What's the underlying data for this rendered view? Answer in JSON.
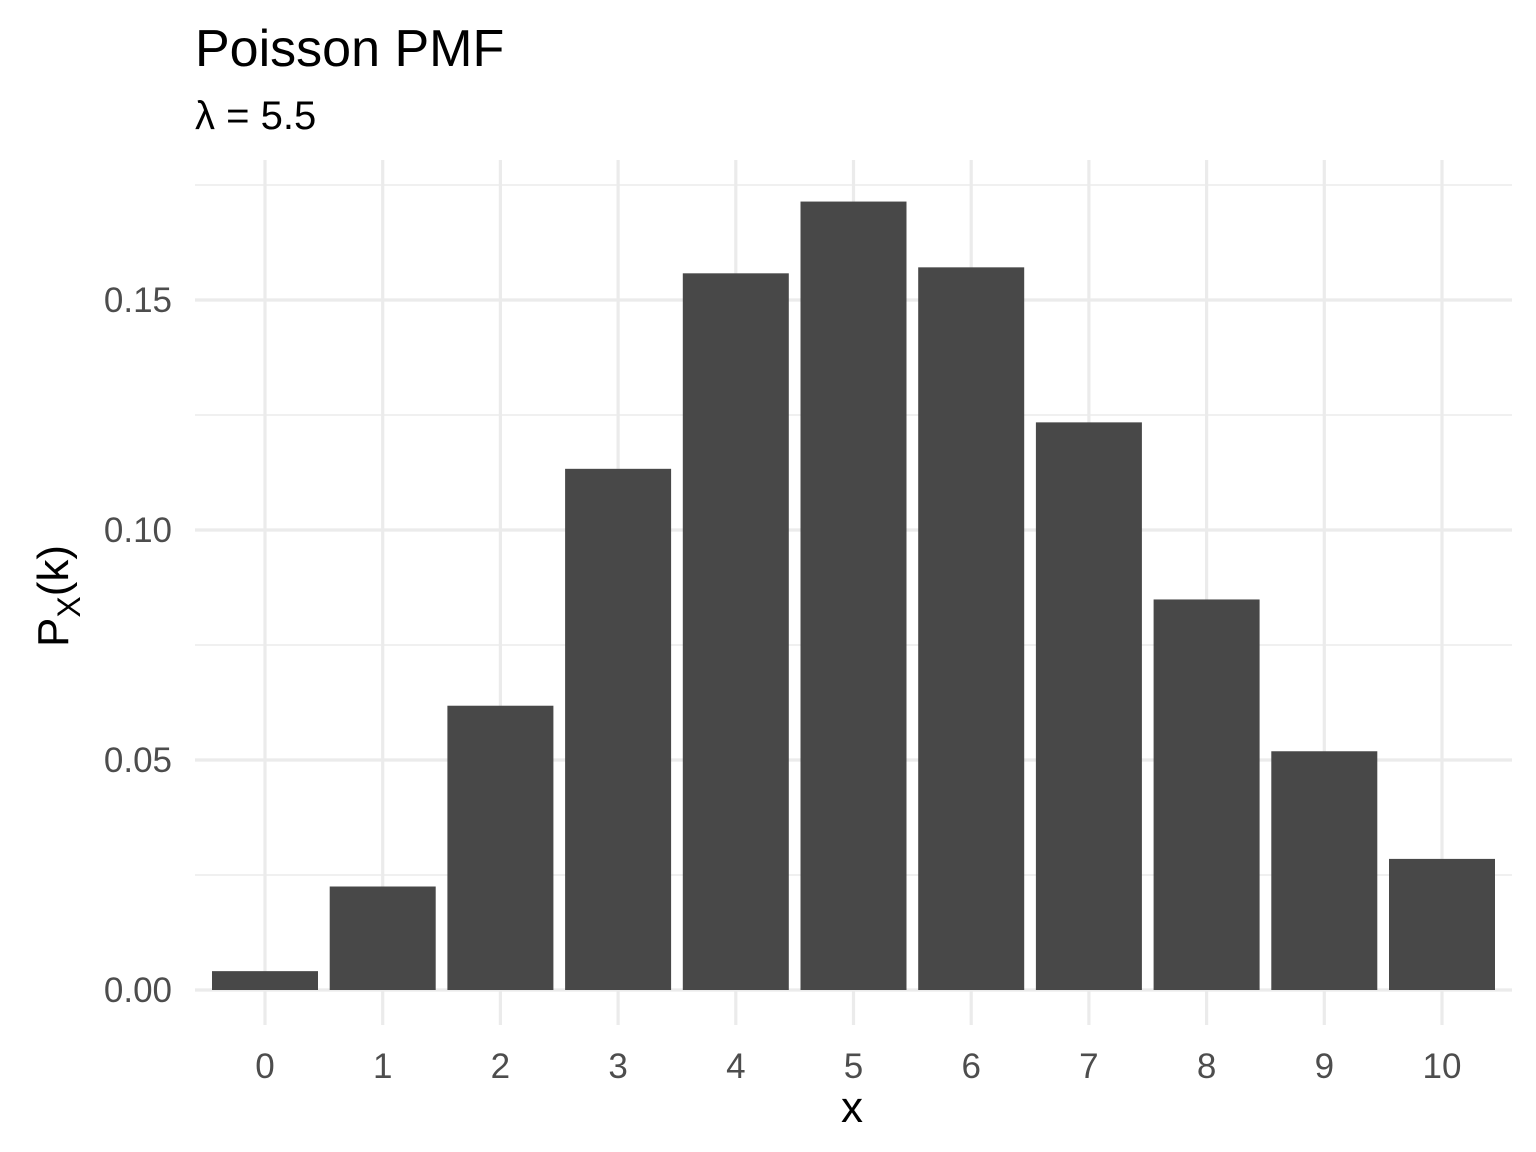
{
  "chart_data": {
    "type": "bar",
    "title": "Poisson PMF",
    "subtitle": "λ = 5.5",
    "xlabel": "x",
    "ylabel": "P_X(k)",
    "ylabel_main": "P",
    "ylabel_sub": "X",
    "ylabel_tail": "(k)",
    "categories": [
      "0",
      "1",
      "2",
      "3",
      "4",
      "5",
      "6",
      "7",
      "8",
      "9",
      "10"
    ],
    "values": [
      0.0041,
      0.0225,
      0.0618,
      0.1133,
      0.1558,
      0.1714,
      0.1571,
      0.1234,
      0.0849,
      0.0519,
      0.0285
    ],
    "yticks": [
      0,
      0.05,
      0.1,
      0.15
    ],
    "ytick_labels": [
      "0.00",
      "0.05",
      "0.10",
      "0.15"
    ],
    "ylim": [
      0,
      0.175
    ],
    "grid": true,
    "bar_color": "#484848",
    "grid_color": "#ebebeb"
  }
}
